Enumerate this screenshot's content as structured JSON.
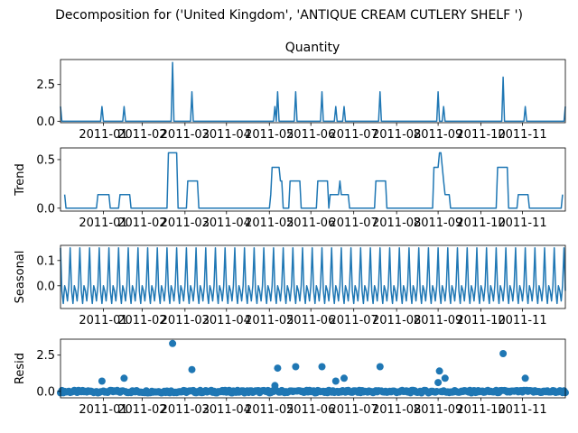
{
  "figure": {
    "suptitle": "Decomposition for ('United Kingdom', 'ANTIQUE CREAM CUTLERY SHELF ')"
  },
  "chart_data": [
    {
      "id": "observed",
      "type": "line",
      "title": "Quantity",
      "ylabel": "",
      "ylim": [
        -0.1,
        4.2
      ],
      "yticks": [
        0.0,
        2.5
      ],
      "ytick_labels": [
        "0.0",
        "2.5"
      ],
      "x_range_days": [
        0,
        365
      ],
      "xticks": [
        "2011-01",
        "2011-02",
        "2011-03",
        "2011-04",
        "2011-05",
        "2011-06",
        "2011-07",
        "2011-08",
        "2011-09",
        "2011-10",
        "2011-11"
      ],
      "spikes": [
        {
          "day": 0,
          "value": 1
        },
        {
          "day": 30,
          "value": 1
        },
        {
          "day": 46,
          "value": 1
        },
        {
          "day": 81,
          "value": 4
        },
        {
          "day": 95,
          "value": 2
        },
        {
          "day": 155,
          "value": 1
        },
        {
          "day": 157,
          "value": 2
        },
        {
          "day": 170,
          "value": 2
        },
        {
          "day": 189,
          "value": 2
        },
        {
          "day": 199,
          "value": 1
        },
        {
          "day": 205,
          "value": 1
        },
        {
          "day": 231,
          "value": 2
        },
        {
          "day": 273,
          "value": 2
        },
        {
          "day": 277,
          "value": 1
        },
        {
          "day": 320,
          "value": 3
        },
        {
          "day": 336,
          "value": 1
        },
        {
          "day": 365,
          "value": 1
        }
      ]
    },
    {
      "id": "trend",
      "type": "line",
      "title": "",
      "ylabel": "Trend",
      "ylim": [
        -0.03,
        0.62
      ],
      "yticks": [
        0.0,
        0.5
      ],
      "ytick_labels": [
        "0.0",
        "0.5"
      ],
      "x_range_days": [
        0,
        365
      ],
      "xticks": [
        "2011-01",
        "2011-02",
        "2011-03",
        "2011-04",
        "2011-05",
        "2011-06",
        "2011-07",
        "2011-08",
        "2011-09",
        "2011-10",
        "2011-11"
      ],
      "points": [
        [
          3,
          0.14
        ],
        [
          4,
          0
        ],
        [
          26,
          0
        ],
        [
          27,
          0.14
        ],
        [
          35,
          0.14
        ],
        [
          36,
          0
        ],
        [
          42,
          0
        ],
        [
          43,
          0.14
        ],
        [
          50,
          0.14
        ],
        [
          51,
          0
        ],
        [
          77,
          0
        ],
        [
          78,
          0.57
        ],
        [
          84,
          0.57
        ],
        [
          85,
          0
        ],
        [
          91,
          0
        ],
        [
          92,
          0.28
        ],
        [
          99,
          0.28
        ],
        [
          100,
          0
        ],
        [
          151,
          0
        ],
        [
          152,
          0.14
        ],
        [
          153,
          0.42
        ],
        [
          158,
          0.42
        ],
        [
          159,
          0.28
        ],
        [
          160,
          0.28
        ],
        [
          161,
          0
        ],
        [
          165,
          0
        ],
        [
          166,
          0.28
        ],
        [
          173,
          0.28
        ],
        [
          174,
          0
        ],
        [
          185,
          0
        ],
        [
          186,
          0.28
        ],
        [
          193,
          0.28
        ],
        [
          194,
          0
        ],
        [
          195,
          0.14
        ],
        [
          201,
          0.14
        ],
        [
          202,
          0.28
        ],
        [
          203,
          0.14
        ],
        [
          208,
          0.14
        ],
        [
          209,
          0
        ],
        [
          227,
          0
        ],
        [
          228,
          0.28
        ],
        [
          235,
          0.28
        ],
        [
          236,
          0
        ],
        [
          269,
          0
        ],
        [
          270,
          0.42
        ],
        [
          273,
          0.42
        ],
        [
          274,
          0.57
        ],
        [
          275,
          0.57
        ],
        [
          277,
          0.28
        ],
        [
          278,
          0.14
        ],
        [
          281,
          0.14
        ],
        [
          282,
          0
        ],
        [
          315,
          0
        ],
        [
          316,
          0.42
        ],
        [
          323,
          0.42
        ],
        [
          324,
          0
        ],
        [
          330,
          0
        ],
        [
          331,
          0.14
        ],
        [
          338,
          0.14
        ],
        [
          339,
          0
        ],
        [
          362,
          0
        ],
        [
          363,
          0.14
        ]
      ]
    },
    {
      "id": "seasonal",
      "type": "line",
      "title": "",
      "ylabel": "Seasonal",
      "ylim": [
        -0.09,
        0.16
      ],
      "yticks": [
        0.0,
        0.1
      ],
      "ytick_labels": [
        "0.0",
        "0.1"
      ],
      "x_range_days": [
        0,
        365
      ],
      "xticks": [
        "2011-01",
        "2011-02",
        "2011-03",
        "2011-04",
        "2011-05",
        "2011-06",
        "2011-07",
        "2011-08",
        "2011-09",
        "2011-10",
        "2011-11"
      ],
      "period_days": 7,
      "pattern": [
        0.15,
        -0.02,
        -0.07,
        0.0,
        -0.02,
        -0.06,
        0.0
      ]
    },
    {
      "id": "resid",
      "type": "scatter",
      "title": "",
      "ylabel": "Resid",
      "ylim": [
        -0.45,
        3.6
      ],
      "yticks": [
        0.0,
        2.5
      ],
      "ytick_labels": [
        "0.0",
        "2.5"
      ],
      "x_range_days": [
        0,
        365
      ],
      "xticks": [
        "2011-01",
        "2011-02",
        "2011-03",
        "2011-04",
        "2011-05",
        "2011-06",
        "2011-07",
        "2011-08",
        "2011-09",
        "2011-10",
        "2011-11"
      ],
      "outliers": [
        {
          "day": 30,
          "value": 0.7
        },
        {
          "day": 46,
          "value": 0.9
        },
        {
          "day": 81,
          "value": 3.3
        },
        {
          "day": 95,
          "value": 1.5
        },
        {
          "day": 155,
          "value": 0.4
        },
        {
          "day": 157,
          "value": 1.6
        },
        {
          "day": 170,
          "value": 1.7
        },
        {
          "day": 189,
          "value": 1.7
        },
        {
          "day": 199,
          "value": 0.7
        },
        {
          "day": 205,
          "value": 0.9
        },
        {
          "day": 231,
          "value": 1.7
        },
        {
          "day": 273,
          "value": 0.6
        },
        {
          "day": 274,
          "value": 1.4
        },
        {
          "day": 278,
          "value": 0.9
        },
        {
          "day": 320,
          "value": 2.6
        },
        {
          "day": 336,
          "value": 0.9
        }
      ]
    }
  ]
}
